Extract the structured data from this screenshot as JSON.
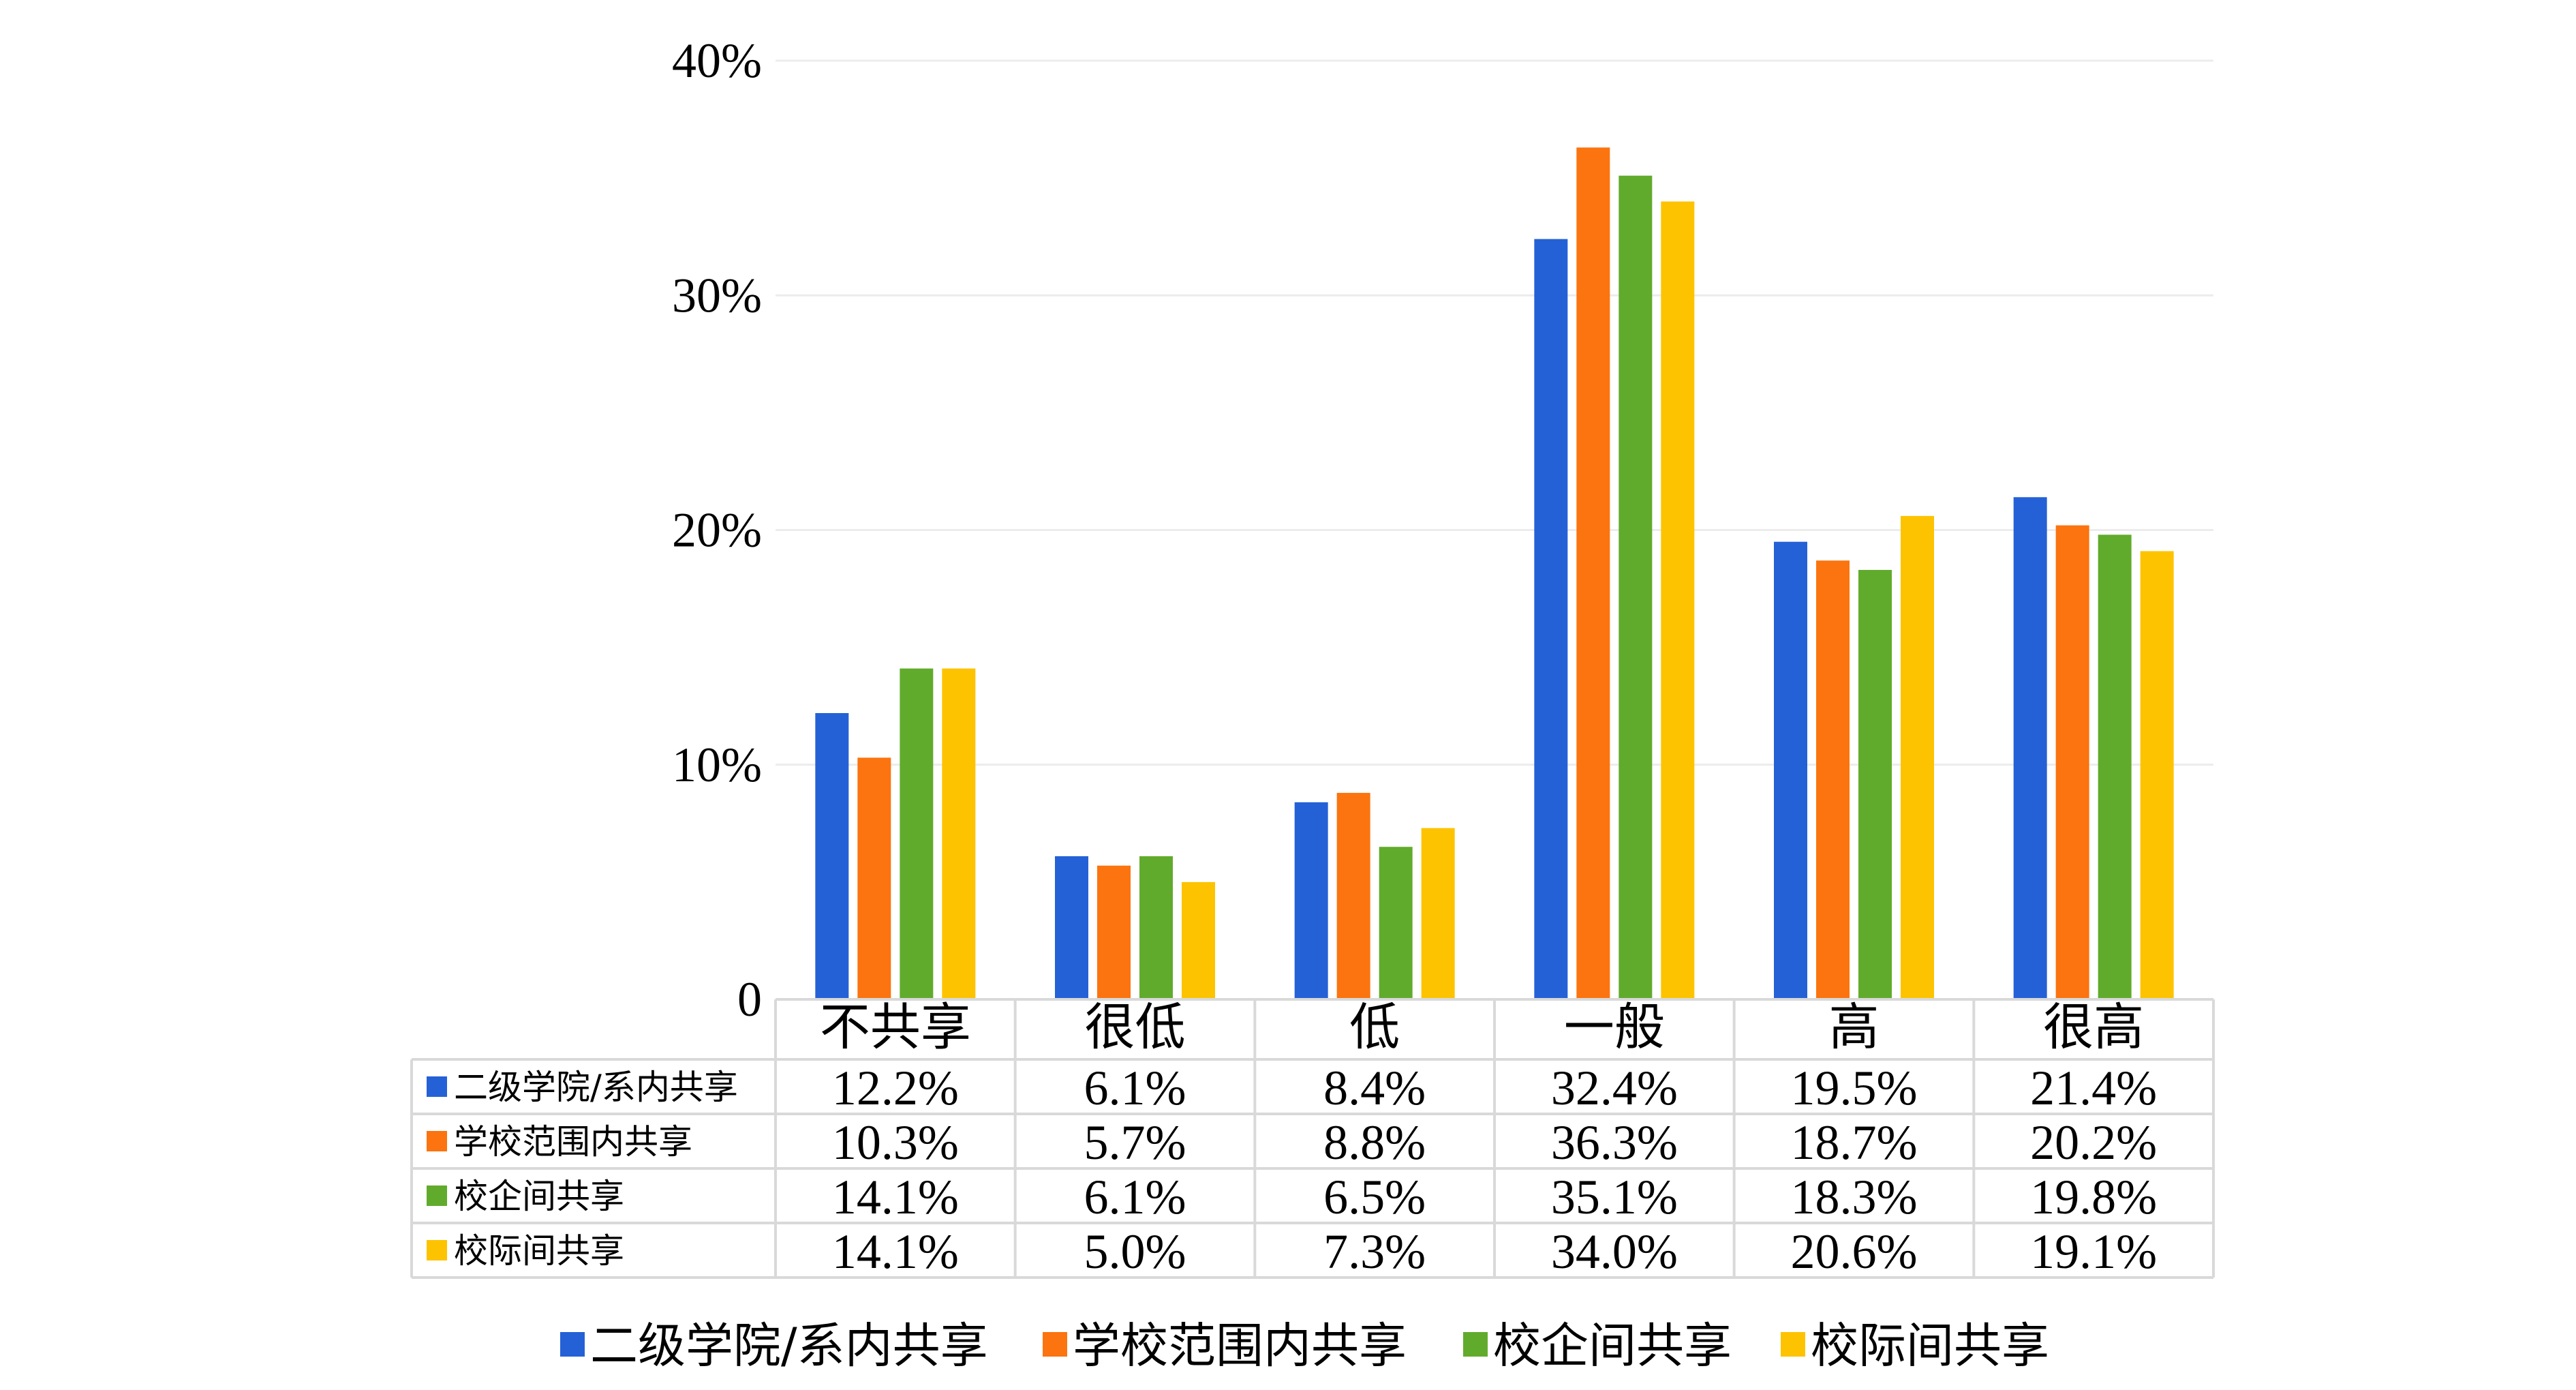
{
  "chart_data": {
    "type": "bar",
    "categories": [
      "不共享",
      "很低",
      "低",
      "一般",
      "高",
      "很高"
    ],
    "series": [
      {
        "name": "二级学院/系内共享",
        "color": "#2561d6",
        "values": [
          12.2,
          6.1,
          8.4,
          32.4,
          19.5,
          21.4
        ],
        "labels": [
          "12.2%",
          "6.1%",
          "8.4%",
          "32.4%",
          "19.5%",
          "21.4%"
        ]
      },
      {
        "name": "学校范围内共享",
        "color": "#fb740f",
        "values": [
          10.3,
          5.7,
          8.8,
          36.3,
          18.7,
          20.2
        ],
        "labels": [
          "10.3%",
          "5.7%",
          "8.8%",
          "36.3%",
          "18.7%",
          "20.2%"
        ]
      },
      {
        "name": "校企间共享",
        "color": "#61ab2c",
        "values": [
          14.1,
          6.1,
          6.5,
          35.1,
          18.3,
          19.8
        ],
        "labels": [
          "14.1%",
          "6.1%",
          "6.5%",
          "35.1%",
          "18.3%",
          "19.8%"
        ]
      },
      {
        "name": "校际间共享",
        "color": "#fdc300",
        "values": [
          14.1,
          5.0,
          7.3,
          34.0,
          20.6,
          19.1
        ],
        "labels": [
          "14.1%",
          "5.0%",
          "7.3%",
          "34.0%",
          "20.6%",
          "19.1%"
        ]
      }
    ],
    "ylim": [
      0,
      40
    ],
    "yticks": [
      0,
      10,
      20,
      30,
      40
    ],
    "ytick_labels": [
      "0",
      "10%",
      "20%",
      "30%",
      "40%"
    ],
    "grid": true,
    "data_table": true,
    "legend_position": "bottom"
  }
}
